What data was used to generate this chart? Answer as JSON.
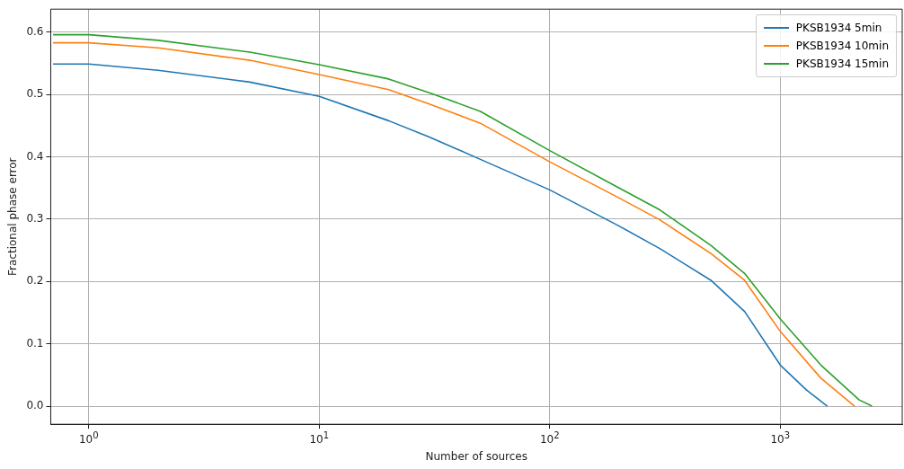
{
  "chart_data": {
    "type": "line",
    "xlabel": "Number of sources",
    "ylabel": "Fractional phase error",
    "log": "x",
    "xlim": [
      0.684,
      3380
    ],
    "ylim": [
      -0.029,
      0.637
    ],
    "xticks": [
      {
        "value": 1,
        "label": "10$^{0}$"
      },
      {
        "value": 10,
        "label": "10$^{1}$"
      },
      {
        "value": 100,
        "label": "10$^{2}$"
      },
      {
        "value": 1000,
        "label": "10$^{3}$"
      }
    ],
    "yticks": [
      {
        "value": 0,
        "label": "0.0"
      },
      {
        "value": 0.1,
        "label": "0.1"
      },
      {
        "value": 0.2,
        "label": "0.2"
      },
      {
        "value": 0.3,
        "label": "0.3"
      },
      {
        "value": 0.4,
        "label": "0.4"
      },
      {
        "value": 0.5,
        "label": "0.5"
      },
      {
        "value": 0.6,
        "label": "0.6"
      }
    ],
    "grid": true,
    "legend": "top right",
    "marker": "none",
    "line_style": "solid",
    "series": [
      {
        "name": "PKSB1934 5min",
        "color": "#1f77b4",
        "x": [
          0.7,
          1,
          2,
          5,
          10,
          20,
          30,
          50,
          100,
          200,
          300,
          500,
          700,
          1000,
          1300,
          1600
        ],
        "values": [
          0.549,
          0.549,
          0.539,
          0.52,
          0.497,
          0.458,
          0.432,
          0.396,
          0.347,
          0.289,
          0.253,
          0.202,
          0.152,
          0.066,
          0.026,
          0.0
        ]
      },
      {
        "name": "PKSB1934 10min",
        "color": "#ff7f0e",
        "x": [
          0.7,
          1,
          2,
          5,
          10,
          20,
          30,
          50,
          100,
          200,
          300,
          500,
          700,
          1000,
          1500,
          2100
        ],
        "values": [
          0.583,
          0.583,
          0.575,
          0.555,
          0.532,
          0.508,
          0.485,
          0.454,
          0.392,
          0.334,
          0.299,
          0.245,
          0.202,
          0.12,
          0.045,
          0.0
        ]
      },
      {
        "name": "PKSB1934 15min",
        "color": "#2ca02c",
        "x": [
          0.7,
          1,
          2,
          5,
          10,
          20,
          30,
          50,
          100,
          200,
          300,
          500,
          700,
          1000,
          1500,
          2200,
          2500
        ],
        "values": [
          0.596,
          0.596,
          0.587,
          0.568,
          0.548,
          0.525,
          0.503,
          0.473,
          0.41,
          0.35,
          0.315,
          0.258,
          0.213,
          0.14,
          0.066,
          0.01,
          0.0
        ]
      }
    ]
  }
}
